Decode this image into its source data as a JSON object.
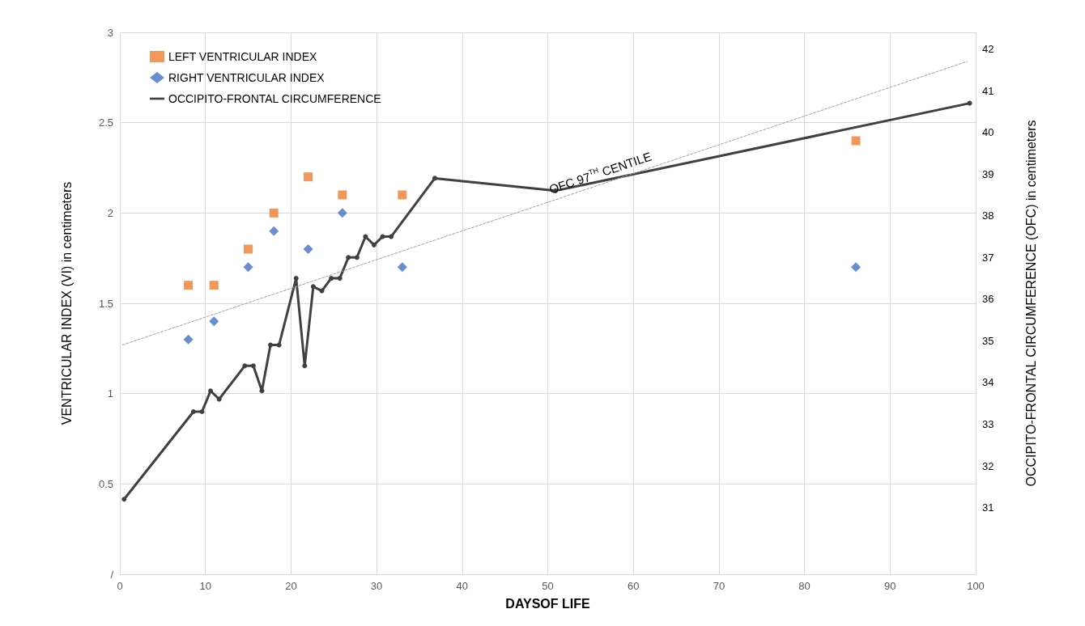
{
  "chart_data": {
    "type": "scatter",
    "xlabel": "DAYSOF LIFE",
    "ylabel": "VENTRICULAR INDEX (VI) in centimeters",
    "y2label": "OCCIPITO-FRONTAL CIRCUMFERENCE (OFC) in centimeters",
    "xlim": [
      0,
      100
    ],
    "xticks": [
      0,
      10,
      20,
      30,
      40,
      50,
      60,
      70,
      80,
      90,
      100
    ],
    "ylim": [
      0,
      3
    ],
    "yticks": [
      {
        "value": 0,
        "label": "/"
      },
      0.5,
      1,
      1.5,
      2,
      2.5,
      3
    ],
    "y2lim": [
      29.4,
      42.4
    ],
    "y2ticks": [
      31,
      32,
      33,
      34,
      35,
      36,
      37,
      38,
      39,
      40,
      41,
      42
    ],
    "grid": true,
    "legend": "top left",
    "annotations": [
      "OFC 97$^{TH}$ CENTILE"
    ],
    "series": [
      {
        "name": "LEFT VENTRICULAR INDEX",
        "marker": "square",
        "color": "#ed7d31",
        "x": [
          8,
          11,
          15,
          18,
          22,
          26,
          33,
          86
        ],
        "values": [
          1.6,
          1.6,
          1.8,
          2.0,
          2.2,
          2.1,
          2.1,
          2.4
        ]
      },
      {
        "name": "RIGHT VENTRICULAR INDEX",
        "marker": "diamond",
        "color": "#4472c4",
        "x": [
          8,
          11,
          15,
          18,
          22,
          26,
          33,
          86
        ],
        "values": [
          1.3,
          1.4,
          1.7,
          1.9,
          1.8,
          2.0,
          1.7,
          1.7
        ]
      },
      {
        "name": "OCCIPITO-FRONTAL CIRCUMFERENCE",
        "type": "line",
        "axis": "y2",
        "marker": "circle",
        "color": "#404040",
        "x": [
          0.5,
          8.6,
          9.6,
          10.6,
          11.6,
          14.6,
          15.6,
          16.6,
          17.6,
          18.6,
          20.6,
          21.6,
          22.6,
          23.6,
          24.7,
          25.7,
          26.7,
          27.7,
          28.7,
          29.7,
          30.7,
          31.7,
          36.8,
          50.9,
          99.3
        ],
        "values": [
          31.2,
          33.3,
          33.3,
          33.8,
          33.6,
          34.4,
          34.4,
          33.8,
          34.9,
          34.9,
          36.5,
          34.4,
          36.3,
          36.2,
          36.5,
          36.5,
          37.0,
          37.0,
          37.5,
          37.3,
          37.5,
          37.5,
          38.9,
          38.6,
          40.7
        ]
      },
      {
        "type": "line",
        "axis": "y2",
        "marker": "none",
        "line_style": "dashed",
        "color": "#a0a0a0",
        "x": [
          0.3,
          99
        ],
        "values": [
          34.9,
          41.7
        ]
      }
    ]
  }
}
